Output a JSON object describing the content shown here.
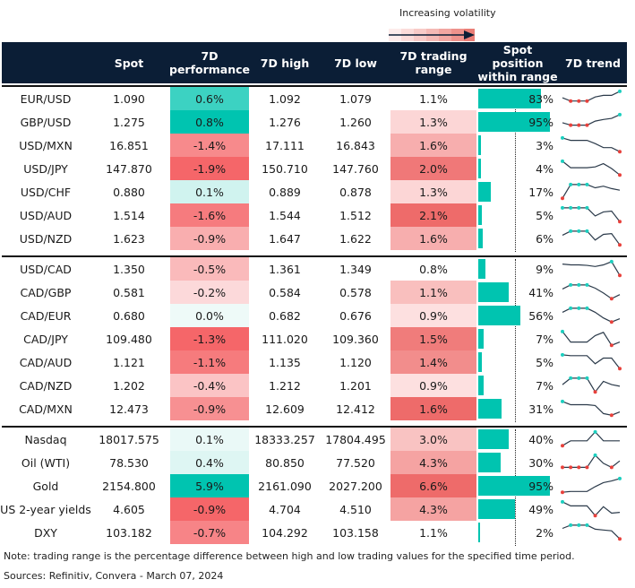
{
  "legend": {
    "label": "Increasing volatility"
  },
  "headers": {
    "name": "",
    "spot": "Spot",
    "perf": "7D performance",
    "high": "7D high",
    "low": "7D low",
    "range": "7D trading range",
    "position": "Spot position within range",
    "trend": "7D trend"
  },
  "colors": {
    "header_bg": "#0b1e36",
    "bar": "#00c4b0",
    "high_marker": "#1ccfbf",
    "low_marker": "#e8413c",
    "trend_line": "#2b3a4a"
  },
  "chart_data": {
    "type": "table",
    "title": "",
    "columns": [
      "",
      "Spot",
      "7D performance",
      "7D high",
      "7D low",
      "7D trading range",
      "Spot position within range",
      "7D trend"
    ],
    "groups": [
      {
        "rows": [
          {
            "name": "EUR/USD",
            "spot": "1.090",
            "perf": "0.6%",
            "perf_value": 0.6,
            "high": "1.092",
            "low": "1.079",
            "range": "1.1%",
            "range_value": 1.1,
            "position": "83%",
            "position_value": 83,
            "trend": [
              0.55,
              0.35,
              0.35,
              0.35,
              0.6,
              0.7,
              0.7,
              0.95
            ]
          },
          {
            "name": "GBP/USD",
            "spot": "1.275",
            "perf": "0.8%",
            "perf_value": 0.8,
            "high": "1.276",
            "low": "1.260",
            "range": "1.3%",
            "range_value": 1.3,
            "position": "95%",
            "position_value": 95,
            "trend": [
              0.45,
              0.3,
              0.3,
              0.3,
              0.55,
              0.65,
              0.72,
              0.95
            ]
          },
          {
            "name": "USD/MXN",
            "spot": "16.851",
            "perf": "-1.4%",
            "perf_value": -1.4,
            "high": "17.111",
            "low": "16.843",
            "range": "1.6%",
            "range_value": 1.6,
            "position": "3%",
            "position_value": 3,
            "trend": [
              0.95,
              0.8,
              0.8,
              0.8,
              0.6,
              0.35,
              0.35,
              0.1
            ]
          },
          {
            "name": "USD/JPY",
            "spot": "147.870",
            "perf": "-1.9%",
            "perf_value": -1.9,
            "high": "150.710",
            "low": "147.760",
            "range": "2.0%",
            "range_value": 2.0,
            "position": "4%",
            "position_value": 4,
            "trend": [
              0.95,
              0.55,
              0.55,
              0.55,
              0.6,
              0.8,
              0.5,
              0.1
            ]
          },
          {
            "name": "USD/CHF",
            "spot": "0.880",
            "perf": "0.1%",
            "perf_value": 0.1,
            "high": "0.889",
            "low": "0.878",
            "range": "1.3%",
            "range_value": 1.3,
            "position": "17%",
            "position_value": 17,
            "trend": [
              0.1,
              0.95,
              0.95,
              0.95,
              0.75,
              0.85,
              0.7,
              0.6
            ]
          },
          {
            "name": "USD/AUD",
            "spot": "1.514",
            "perf": "-1.6%",
            "perf_value": -1.6,
            "high": "1.544",
            "low": "1.512",
            "range": "2.1%",
            "range_value": 2.1,
            "position": "5%",
            "position_value": 5,
            "trend": [
              0.95,
              0.95,
              0.95,
              0.95,
              0.45,
              0.7,
              0.75,
              0.1
            ]
          },
          {
            "name": "USD/NZD",
            "spot": "1.623",
            "perf": "-0.9%",
            "perf_value": -0.9,
            "high": "1.647",
            "low": "1.622",
            "range": "1.6%",
            "range_value": 1.6,
            "position": "6%",
            "position_value": 6,
            "trend": [
              0.7,
              0.95,
              0.95,
              0.95,
              0.4,
              0.75,
              0.8,
              0.1
            ]
          }
        ]
      },
      {
        "rows": [
          {
            "name": "USD/CAD",
            "spot": "1.350",
            "perf": "-0.5%",
            "perf_value": -0.5,
            "high": "1.361",
            "low": "1.349",
            "range": "0.8%",
            "range_value": 0.8,
            "position": "9%",
            "position_value": 9,
            "trend": [
              0.8,
              0.75,
              0.75,
              0.72,
              0.65,
              0.75,
              0.95,
              0.1
            ]
          },
          {
            "name": "CAD/GBP",
            "spot": "0.581",
            "perf": "-0.2%",
            "perf_value": -0.2,
            "high": "0.584",
            "low": "0.578",
            "range": "1.1%",
            "range_value": 1.1,
            "position": "41%",
            "position_value": 41,
            "trend": [
              0.7,
              0.95,
              0.95,
              0.95,
              0.75,
              0.45,
              0.1,
              0.35
            ]
          },
          {
            "name": "CAD/EUR",
            "spot": "0.680",
            "perf": "0.0%",
            "perf_value": 0.0,
            "high": "0.682",
            "low": "0.676",
            "range": "0.9%",
            "range_value": 0.9,
            "position": "56%",
            "position_value": 56,
            "trend": [
              0.7,
              0.95,
              0.95,
              0.95,
              0.7,
              0.35,
              0.1,
              0.3
            ]
          },
          {
            "name": "CAD/JPY",
            "spot": "109.480",
            "perf": "-1.3%",
            "perf_value": -1.3,
            "high": "111.020",
            "low": "109.360",
            "range": "1.5%",
            "range_value": 1.5,
            "position": "7%",
            "position_value": 7,
            "trend": [
              0.95,
              0.3,
              0.3,
              0.3,
              0.7,
              0.9,
              0.1,
              0.3
            ]
          },
          {
            "name": "CAD/AUD",
            "spot": "1.121",
            "perf": "-1.1%",
            "perf_value": -1.1,
            "high": "1.135",
            "low": "1.120",
            "range": "1.4%",
            "range_value": 1.4,
            "position": "5%",
            "position_value": 5,
            "trend": [
              0.95,
              0.9,
              0.9,
              0.9,
              0.4,
              0.75,
              0.75,
              0.1
            ]
          },
          {
            "name": "CAD/NZD",
            "spot": "1.202",
            "perf": "-0.4%",
            "perf_value": -0.4,
            "high": "1.212",
            "low": "1.201",
            "range": "0.9%",
            "range_value": 0.9,
            "position": "7%",
            "position_value": 7,
            "trend": [
              0.55,
              0.95,
              0.95,
              0.95,
              0.1,
              0.75,
              0.55,
              0.45
            ]
          },
          {
            "name": "CAD/MXN",
            "spot": "12.473",
            "perf": "-0.9%",
            "perf_value": -0.9,
            "high": "12.609",
            "low": "12.412",
            "range": "1.6%",
            "range_value": 1.6,
            "position": "31%",
            "position_value": 31,
            "trend": [
              0.95,
              0.75,
              0.75,
              0.75,
              0.7,
              0.2,
              0.1,
              0.3
            ]
          }
        ]
      },
      {
        "rows": [
          {
            "name": "Nasdaq",
            "spot": "18017.575",
            "perf": "0.1%",
            "perf_value": 0.1,
            "high": "18333.257",
            "low": "17804.495",
            "range": "3.0%",
            "range_value": 3.0,
            "position": "40%",
            "position_value": 40,
            "trend": [
              0.1,
              0.4,
              0.4,
              0.4,
              0.95,
              0.4,
              0.4,
              0.4
            ]
          },
          {
            "name": "Oil (WTI)",
            "spot": "78.530",
            "perf": "0.4%",
            "perf_value": 0.4,
            "high": "80.850",
            "low": "77.520",
            "range": "4.3%",
            "range_value": 4.3,
            "position": "30%",
            "position_value": 30,
            "trend": [
              0.2,
              0.2,
              0.2,
              0.2,
              0.95,
              0.45,
              0.2,
              0.6
            ]
          },
          {
            "name": "Gold",
            "spot": "2154.800",
            "perf": "5.9%",
            "perf_value": 5.9,
            "high": "2161.090",
            "low": "2027.200",
            "range": "6.6%",
            "range_value": 6.6,
            "position": "95%",
            "position_value": 95,
            "trend": [
              0.1,
              0.15,
              0.15,
              0.15,
              0.45,
              0.7,
              0.8,
              0.95
            ]
          },
          {
            "name": "US 2-year yields",
            "spot": "4.605",
            "perf": "-0.9%",
            "perf_value": -0.9,
            "high": "4.704",
            "low": "4.510",
            "range": "4.3%",
            "range_value": 4.3,
            "position": "49%",
            "position_value": 49,
            "trend": [
              0.95,
              0.7,
              0.7,
              0.7,
              0.1,
              0.65,
              0.25,
              0.3
            ]
          },
          {
            "name": "DXY",
            "spot": "103.182",
            "perf": "-0.7%",
            "perf_value": -0.7,
            "high": "104.292",
            "low": "103.158",
            "range": "1.1%",
            "range_value": 1.1,
            "position": "2%",
            "position_value": 2,
            "trend": [
              0.75,
              0.95,
              0.95,
              0.95,
              0.7,
              0.65,
              0.6,
              0.1
            ]
          }
        ]
      }
    ]
  },
  "footer": {
    "note": "Note: trading range is the percentage difference between high and low trading values for the specified time period.",
    "sources": "Sources: Refinitiv, Convera - March 07, 2024"
  }
}
